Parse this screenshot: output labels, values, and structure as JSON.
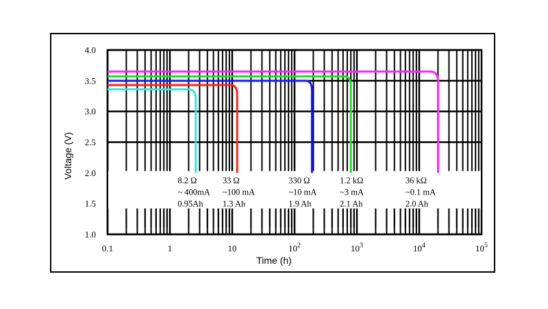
{
  "chart_data": {
    "type": "line",
    "title": "",
    "xlabel": "Time (h)",
    "ylabel": "Voltage (V)",
    "xscale": "log",
    "xlim": [
      0.1,
      100000
    ],
    "ylim": [
      1.0,
      4.0
    ],
    "x_tick_labels": [
      {
        "value": 0.1,
        "base": "0.1",
        "exp": ""
      },
      {
        "value": 1,
        "base": "1",
        "exp": ""
      },
      {
        "value": 10,
        "base": "10",
        "exp": ""
      },
      {
        "value": 100,
        "base": "10",
        "exp": "2"
      },
      {
        "value": 1000,
        "base": "10",
        "exp": "3"
      },
      {
        "value": 10000,
        "base": "10",
        "exp": "4"
      },
      {
        "value": 100000,
        "base": "10",
        "exp": "5"
      }
    ],
    "y_tick_labels": [
      "1.0",
      "1.5",
      "2.0",
      "2.5",
      "3.0",
      "3.5",
      "4.0"
    ],
    "grid": true,
    "series": [
      {
        "color": "#33e6e6",
        "plateau_v": 3.36,
        "end_h": 2.6,
        "knee_h": 2.0
      },
      {
        "color": "#ff2020",
        "plateau_v": 3.43,
        "end_h": 12,
        "knee_h": 9.5
      },
      {
        "color": "#1a1aff",
        "plateau_v": 3.5,
        "end_h": 190,
        "knee_h": 150
      },
      {
        "color": "#22dd22",
        "plateau_v": 3.57,
        "end_h": 800,
        "knee_h": 630
      },
      {
        "color": "#ff22ff",
        "plateau_v": 3.65,
        "end_h": 20000,
        "knee_h": 15000
      }
    ],
    "annotations": [
      {
        "x": 2.0,
        "lines": [
          "8.2  Ω",
          "~ 400mA",
          "0.95Ah"
        ]
      },
      {
        "x": 10.5,
        "lines": [
          "33 Ω",
          "~100 mA",
          "1.3 Ah"
        ]
      },
      {
        "x": 120,
        "lines": [
          "330 Ω",
          "~10 mA",
          "1.9 Ah"
        ]
      },
      {
        "x": 800,
        "lines": [
          "1.2 kΩ",
          "~3 mA",
          "2.1 Ah"
        ]
      },
      {
        "x": 9000,
        "lines": [
          "36 kΩ",
          "~0.1 mA",
          "2.0 Ah"
        ]
      }
    ]
  }
}
